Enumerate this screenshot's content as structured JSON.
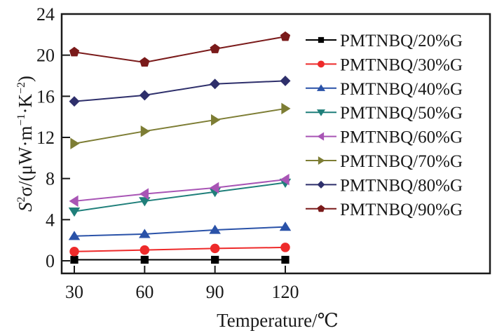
{
  "chart_data": {
    "type": "line",
    "title": "",
    "xlabel": "Temperature/℃",
    "ylabel_parts": {
      "main": "S",
      "sup1": "2",
      "sigma": "σ/(μW·m",
      "sup2": "−1",
      "mid": "·K",
      "sup3": "−2",
      "end": ")"
    },
    "ylabel": "S²σ/(μW·m⁻¹·K⁻²)",
    "x": [
      30,
      60,
      90,
      120
    ],
    "x_tick_labels": [
      "30",
      "60",
      "90",
      "120"
    ],
    "ylim": [
      0,
      24
    ],
    "y_ticks": [
      0,
      4,
      8,
      12,
      16,
      20,
      24
    ],
    "y_tick_labels": [
      "0",
      "4",
      "8",
      "12",
      "16",
      "20",
      "24"
    ],
    "grid": false,
    "legend_position": "right",
    "series": [
      {
        "name": "PMTNBQ/20%G",
        "color": "#000000",
        "marker": "square",
        "values": [
          0.1,
          0.1,
          0.1,
          0.1
        ]
      },
      {
        "name": "PMTNBQ/30%G",
        "color": "#ee2a2a",
        "marker": "circle",
        "values": [
          0.9,
          1.05,
          1.2,
          1.3
        ]
      },
      {
        "name": "PMTNBQ/40%G",
        "color": "#2a52a8",
        "marker": "triangle-up",
        "values": [
          2.4,
          2.6,
          3.0,
          3.3
        ]
      },
      {
        "name": "PMTNBQ/50%G",
        "color": "#1f7f7a",
        "marker": "triangle-down",
        "values": [
          4.8,
          5.8,
          6.7,
          7.6
        ]
      },
      {
        "name": "PMTNBQ/60%G",
        "color": "#a855b5",
        "marker": "triangle-left",
        "values": [
          5.8,
          6.5,
          7.1,
          7.9
        ]
      },
      {
        "name": "PMTNBQ/70%G",
        "color": "#7d7d34",
        "marker": "triangle-right",
        "values": [
          11.4,
          12.6,
          13.7,
          14.8
        ]
      },
      {
        "name": "PMTNBQ/80%G",
        "color": "#2e2f6b",
        "marker": "diamond",
        "values": [
          15.5,
          16.1,
          17.2,
          17.5
        ]
      },
      {
        "name": "PMTNBQ/90%G",
        "color": "#7a1a1a",
        "marker": "pentagon",
        "values": [
          20.3,
          19.3,
          20.6,
          21.8
        ]
      }
    ]
  }
}
